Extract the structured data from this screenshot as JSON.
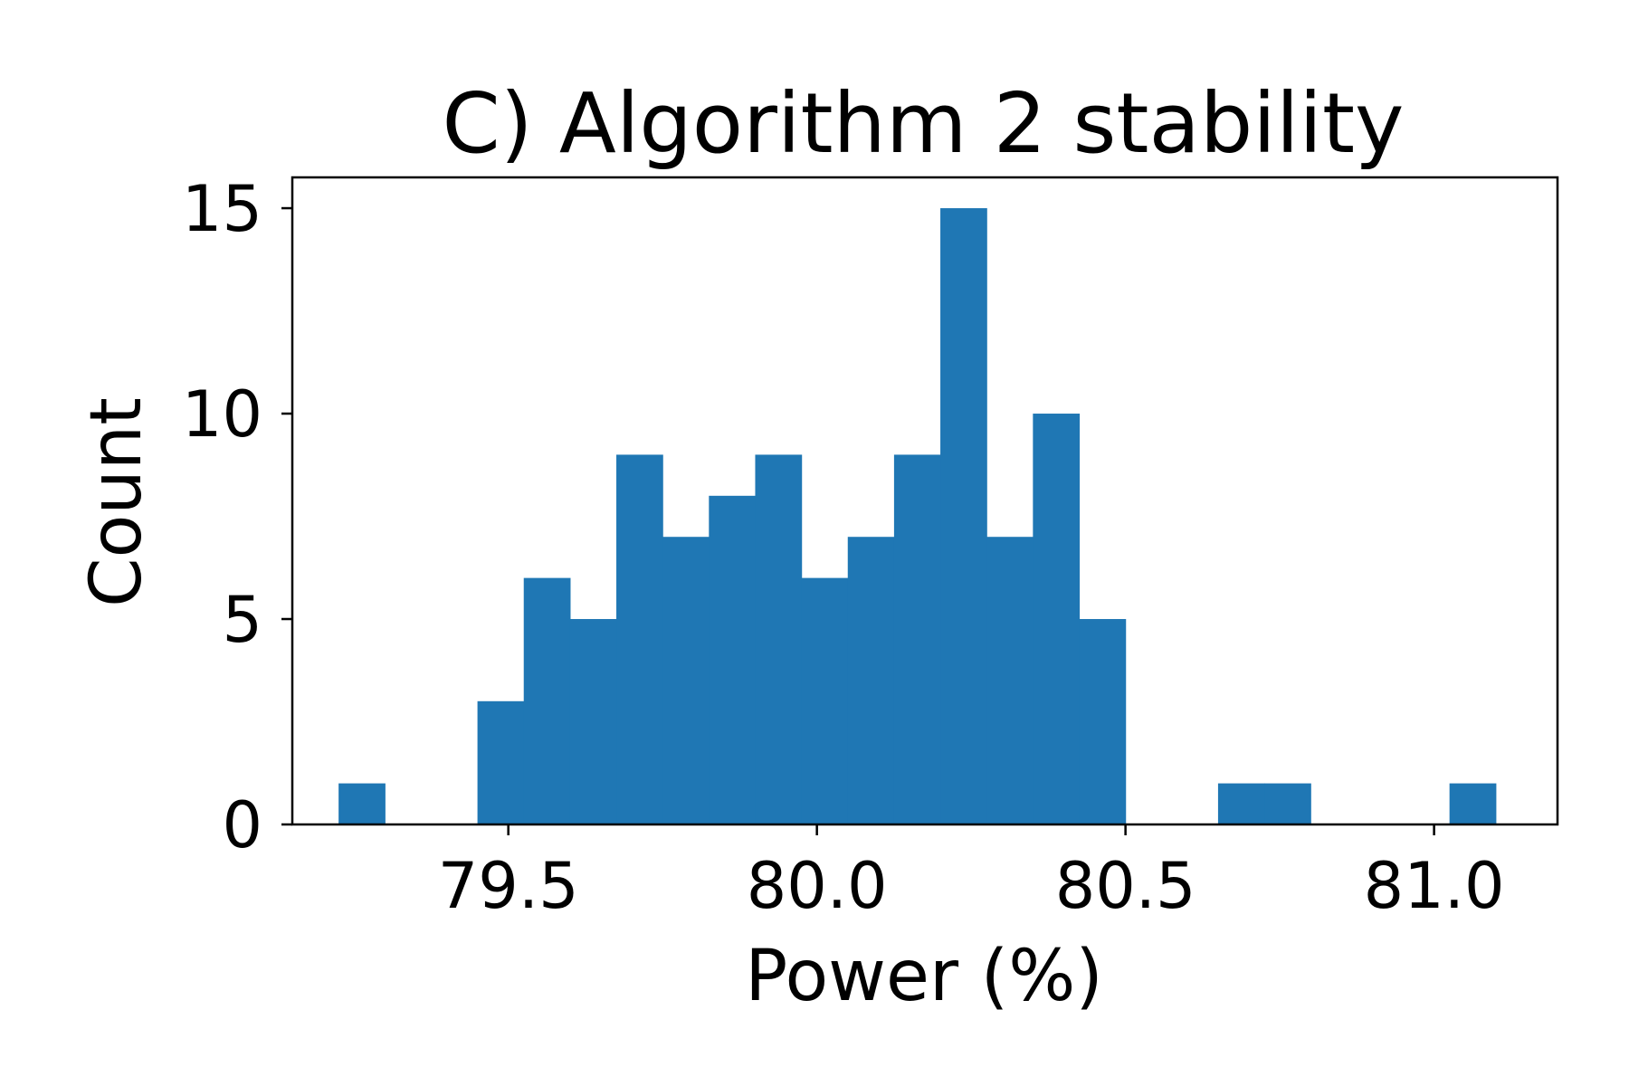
{
  "chart_data": {
    "type": "bar",
    "title": "C) Algorithm 2 stability",
    "xlabel": "Power (%)",
    "ylabel": "Count",
    "xlim": [
      79.15,
      81.2
    ],
    "ylim": [
      0,
      15.75
    ],
    "xticks": [
      79.5,
      80.0,
      80.5,
      81.0
    ],
    "xtick_labels": [
      "79.5",
      "80.0",
      "80.5",
      "81.0"
    ],
    "yticks": [
      0,
      5,
      10,
      15
    ],
    "ytick_labels": [
      "0",
      "5",
      "10",
      "15"
    ],
    "bin_edges": [
      79.225,
      79.3,
      79.375,
      79.45,
      79.525,
      79.6,
      79.675,
      79.75,
      79.825,
      79.9,
      79.975,
      80.05,
      80.125,
      80.2,
      80.275,
      80.35,
      80.425,
      80.5,
      80.575,
      80.65,
      80.725,
      80.8,
      80.875,
      80.95,
      81.025,
      81.1
    ],
    "counts": [
      1,
      0,
      0,
      3,
      6,
      5,
      9,
      7,
      8,
      9,
      6,
      7,
      9,
      15,
      7,
      10,
      5,
      0,
      0,
      1,
      1,
      0,
      0,
      0,
      1
    ],
    "bar_color": "#1f77b4",
    "grid": false
  }
}
